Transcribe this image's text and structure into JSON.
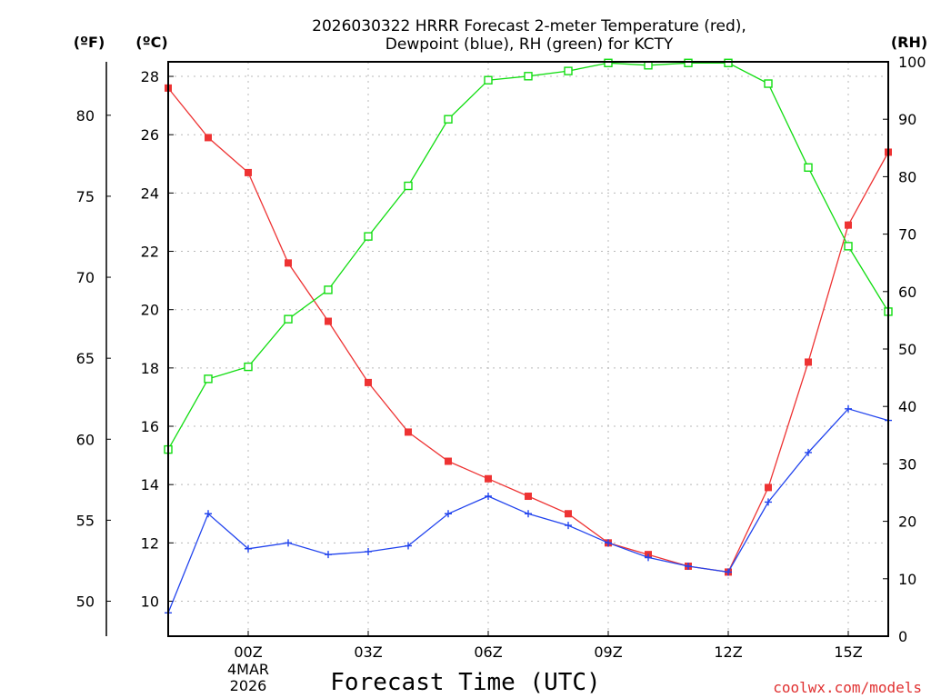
{
  "chart_data": {
    "type": "line",
    "title_line1": "2026030322 HRRR Forecast 2-meter Temperature (red),",
    "title_line2": "Dewpoint (blue), RH (green) for KCTY",
    "xlabel": "Forecast Time (UTC)",
    "credit": "coolwx.com/models",
    "units": {
      "fahrenheit": "(ºF)",
      "celsius": "(ºC)",
      "rh": "(RH)"
    },
    "x_hours": [
      0,
      1,
      2,
      3,
      4,
      5,
      6,
      7,
      8,
      9,
      10,
      11,
      12,
      13,
      14,
      15,
      16,
      17,
      18
    ],
    "x_ticks": [
      {
        "hour": 2,
        "label": "00Z",
        "date": "4MAR",
        "year": "2026"
      },
      {
        "hour": 5,
        "label": "03Z"
      },
      {
        "hour": 8,
        "label": "06Z"
      },
      {
        "hour": 11,
        "label": "09Z"
      },
      {
        "hour": 14,
        "label": "12Z"
      },
      {
        "hour": 17,
        "label": "15Z"
      }
    ],
    "celsius_ylim": [
      8.8,
      28.5
    ],
    "celsius_ticks": [
      "10",
      "12",
      "14",
      "16",
      "18",
      "20",
      "22",
      "24",
      "26",
      "28"
    ],
    "fahrenheit_ticks": [
      "50",
      "55",
      "60",
      "65",
      "70",
      "75",
      "80"
    ],
    "rh_ylim": [
      0,
      100
    ],
    "rh_ticks": [
      "0",
      "10",
      "20",
      "30",
      "40",
      "50",
      "60",
      "70",
      "80",
      "90",
      "100"
    ],
    "series": [
      {
        "name": "2-meter Temperature",
        "axis": "celsius",
        "color": "#ee3333",
        "marker": "filled-square",
        "values": [
          27.6,
          25.9,
          24.7,
          21.6,
          19.6,
          17.5,
          15.8,
          14.8,
          14.2,
          13.6,
          13.0,
          12.0,
          11.6,
          11.2,
          11.0,
          13.9,
          18.2,
          22.9,
          25.4
        ]
      },
      {
        "name": "Dewpoint",
        "axis": "celsius",
        "color": "#2244ee",
        "marker": "plus",
        "values": [
          9.6,
          13.0,
          11.8,
          12.0,
          11.6,
          11.7,
          11.9,
          13.0,
          13.6,
          13.0,
          12.6,
          12.0,
          11.5,
          11.2,
          11.0,
          13.4,
          15.1,
          16.6,
          16.2
        ]
      },
      {
        "name": "RH",
        "axis": "rh",
        "color": "#11dd11",
        "marker": "open-square",
        "values": [
          32.5,
          44.8,
          46.9,
          55.2,
          60.3,
          69.6,
          78.4,
          90.0,
          96.8,
          97.5,
          98.4,
          99.8,
          99.4,
          99.8,
          99.8,
          96.2,
          81.6,
          67.9,
          56.5
        ]
      }
    ]
  }
}
